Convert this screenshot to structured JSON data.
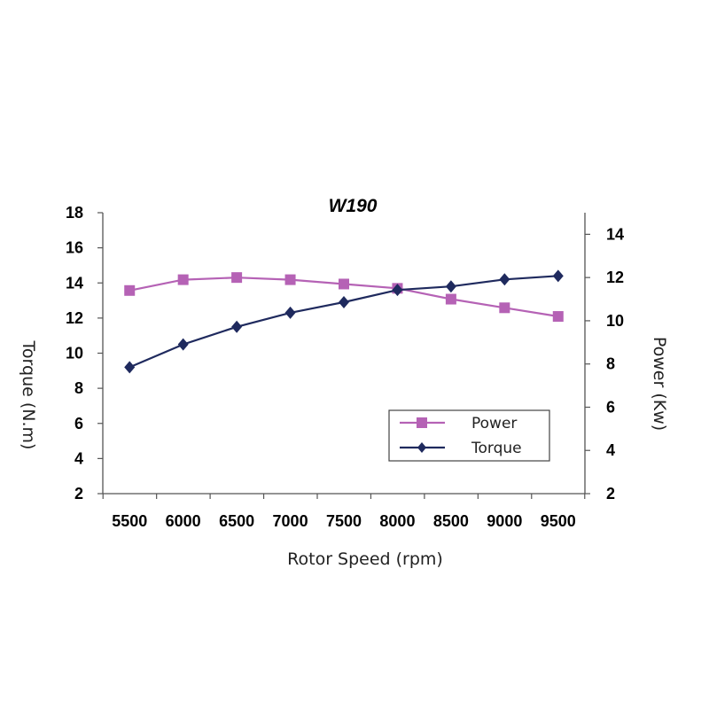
{
  "chart_data": {
    "type": "line",
    "title": "W190",
    "xlabel": "Rotor Speed (rpm)",
    "ylabel_left": "Torque (N.m)",
    "ylabel_right": "Power (Kw)",
    "x_ticks": [
      "5500",
      "6000",
      "6500",
      "7000",
      "7500",
      "8000",
      "8500",
      "9000",
      "9500"
    ],
    "x": [
      5500,
      6000,
      6500,
      7000,
      7500,
      8000,
      8500,
      9000,
      9500
    ],
    "ylim_left": [
      2,
      18
    ],
    "yticks_left": [
      "2",
      "4",
      "6",
      "8",
      "10",
      "12",
      "14",
      "16",
      "18"
    ],
    "ylim_right": [
      2,
      15
    ],
    "yticks_right": [
      "2",
      "4",
      "6",
      "8",
      "10",
      "12",
      "14"
    ],
    "legend_position": "bottom-right",
    "series": [
      {
        "name": "Power",
        "axis": "right",
        "color": "#b562b5",
        "marker": "square",
        "values": [
          11.4,
          11.9,
          12.0,
          11.9,
          11.7,
          11.5,
          11.0,
          10.6,
          10.2
        ]
      },
      {
        "name": "Torque",
        "axis": "left",
        "color": "#1f2a5e",
        "marker": "diamond",
        "values": [
          9.2,
          10.5,
          11.5,
          12.3,
          12.9,
          13.6,
          13.8,
          14.2,
          14.4
        ]
      }
    ]
  }
}
